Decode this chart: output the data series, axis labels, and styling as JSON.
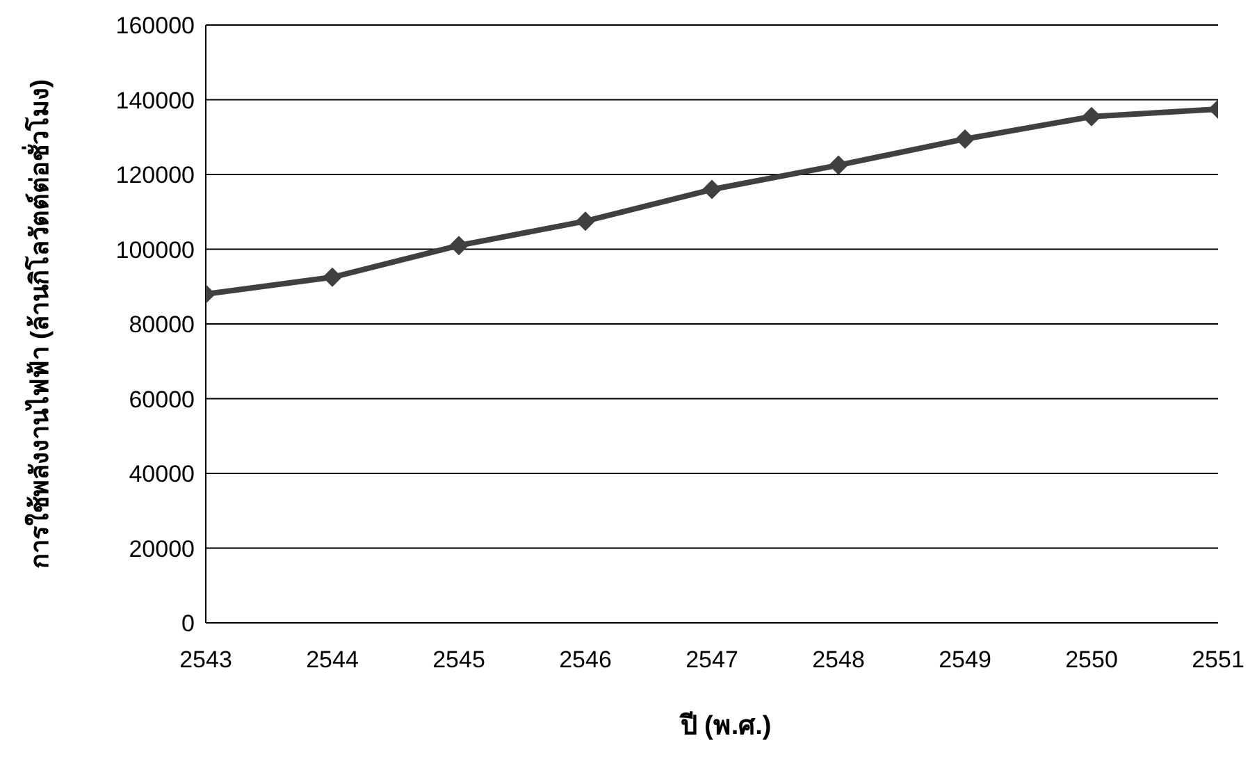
{
  "chart_data": {
    "type": "line",
    "xlabel": "ปี (พ.ศ.)",
    "ylabel": "การใช้พลังงานไฟฟ้า (ล้านกิโลวัตต์ต่อชั่วโมง)",
    "x": [
      2543,
      2544,
      2545,
      2546,
      2547,
      2548,
      2549,
      2550,
      2551
    ],
    "series": [
      {
        "color": "#404040",
        "values": [
          88000,
          92500,
          101000,
          107500,
          116000,
          122500,
          129500,
          135500,
          137500
        ]
      }
    ],
    "xlim": [
      2543,
      2551
    ],
    "xticks": [
      2543,
      2544,
      2545,
      2546,
      2547,
      2548,
      2549,
      2550,
      2551
    ],
    "ylim": [
      0,
      160000
    ],
    "yticks": [
      0,
      20000,
      40000,
      60000,
      80000,
      100000,
      120000,
      140000,
      160000
    ],
    "grid": "y",
    "legend": false,
    "marker": "diamond",
    "line_style": "solid"
  }
}
